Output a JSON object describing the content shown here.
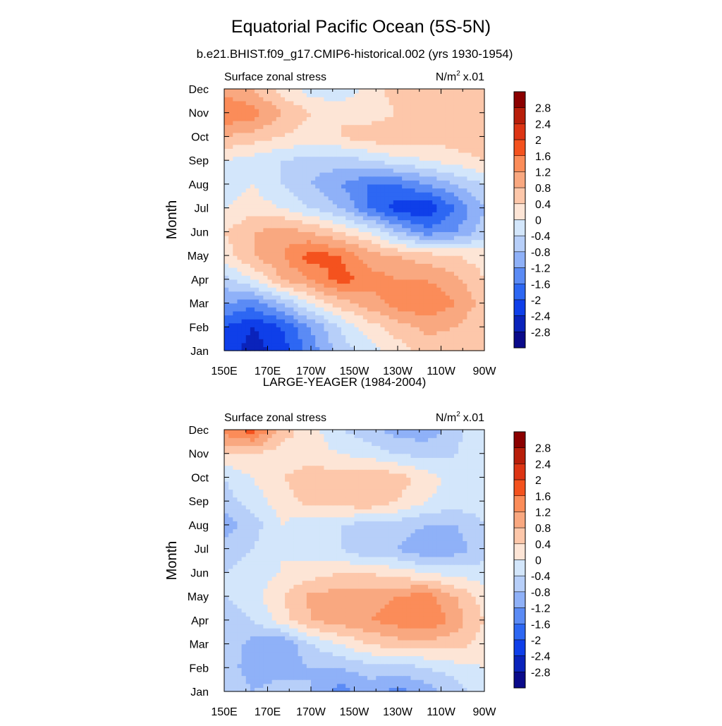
{
  "figure": {
    "title": "Equatorial Pacific Ocean (5S-5N)",
    "subtitle": "b.e21.BHIST.f09_g17.CMIP6-historical.002 (yrs 1930-1954)"
  },
  "chart_data": [
    {
      "type": "heatmap",
      "title": "",
      "left_label": "Surface zonal stress",
      "units": "N/m",
      "units_sup": "2",
      "units_scale": "x.01",
      "xlabel": "",
      "ylabel": "Month",
      "x_ticks": [
        "150E",
        "170E",
        "170W",
        "150W",
        "130W",
        "110W",
        "90W"
      ],
      "y_ticks": [
        "Jan",
        "Feb",
        "Mar",
        "Apr",
        "May",
        "Jun",
        "Jul",
        "Aug",
        "Sep",
        "Oct",
        "Nov",
        "Dec"
      ],
      "colorbar": {
        "labels": [
          "2.8",
          "2.4",
          "2",
          "1.6",
          "1.2",
          "0.8",
          "0.4",
          "0",
          "-0.4",
          "-0.8",
          "-1.2",
          "-1.6",
          "-2",
          "-2.4",
          "-2.8"
        ],
        "colors": [
          "#8b0000",
          "#b81e0a",
          "#dd3514",
          "#f4521e",
          "#fb8c59",
          "#f9a880",
          "#fdc7aa",
          "#fde5d6",
          "#d3e6fb",
          "#b7cff9",
          "#8fb1f8",
          "#5b8bf5",
          "#2d67f3",
          "#0f3fe9",
          "#0a23bb",
          "#0a0a8a"
        ]
      },
      "cells": [
        [
          -2.2,
          -2.6,
          -2.2,
          -1.4,
          -0.6,
          -0.2,
          0.2,
          0.6,
          0.6,
          0.4
        ],
        [
          -2.0,
          -2.4,
          -2.0,
          -1.2,
          -0.4,
          0.2,
          0.6,
          0.9,
          0.8,
          0.4
        ],
        [
          -1.2,
          -1.4,
          -0.8,
          0.0,
          0.6,
          1.0,
          1.4,
          1.6,
          1.2,
          0.6
        ],
        [
          -0.6,
          0.0,
          0.8,
          1.2,
          1.8,
          1.4,
          1.2,
          1.2,
          0.9,
          0.4
        ],
        [
          0.2,
          0.8,
          1.2,
          1.8,
          1.6,
          1.0,
          0.8,
          0.6,
          0.4,
          0.2
        ],
        [
          0.4,
          0.8,
          1.0,
          0.8,
          0.4,
          0.0,
          -0.8,
          -1.4,
          -1.2,
          -0.6
        ],
        [
          0.0,
          0.2,
          0.0,
          -0.4,
          -0.8,
          -1.6,
          -2.2,
          -2.4,
          -1.6,
          -0.8
        ],
        [
          -0.2,
          0.0,
          -0.4,
          -0.8,
          -1.2,
          -1.6,
          -1.6,
          -1.2,
          -0.8,
          -0.4
        ],
        [
          0.0,
          -0.2,
          -0.4,
          -0.6,
          -0.6,
          -0.4,
          -0.2,
          0.0,
          0.2,
          0.4
        ],
        [
          0.8,
          0.6,
          0.4,
          0.2,
          0.4,
          0.6,
          0.8,
          0.6,
          0.6,
          0.8
        ],
        [
          1.6,
          1.4,
          0.8,
          0.4,
          0.4,
          0.2,
          0.4,
          0.6,
          0.8,
          0.8
        ],
        [
          1.0,
          0.8,
          0.2,
          -0.2,
          -0.4,
          0.2,
          0.6,
          0.6,
          0.6,
          0.6
        ]
      ]
    },
    {
      "type": "heatmap",
      "title": "LARGE-YEAGER (1984-2004)",
      "left_label": "Surface zonal stress",
      "units": "N/m",
      "units_sup": "2",
      "units_scale": "x.01",
      "xlabel": "",
      "ylabel": "Month",
      "x_ticks": [
        "150E",
        "170E",
        "170W",
        "150W",
        "130W",
        "110W",
        "90W"
      ],
      "y_ticks": [
        "Jan",
        "Feb",
        "Mar",
        "Apr",
        "May",
        "Jun",
        "Jul",
        "Aug",
        "Sep",
        "Oct",
        "Nov",
        "Dec"
      ],
      "colorbar": {
        "labels": [
          "2.8",
          "2.4",
          "2",
          "1.6",
          "1.2",
          "0.8",
          "0.4",
          "0",
          "-0.4",
          "-0.8",
          "-1.2",
          "-1.6",
          "-2",
          "-2.4",
          "-2.8"
        ],
        "colors": [
          "#8b0000",
          "#b81e0a",
          "#dd3514",
          "#f4521e",
          "#fb8c59",
          "#f9a880",
          "#fdc7aa",
          "#fde5d6",
          "#d3e6fb",
          "#b7cff9",
          "#8fb1f8",
          "#5b8bf5",
          "#2d67f3",
          "#0f3fe9",
          "#0a23bb",
          "#0a0a8a"
        ]
      },
      "cells": [
        [
          -0.4,
          -0.8,
          -0.6,
          -0.8,
          -1.4,
          -1.0,
          -1.4,
          -1.0,
          -0.6,
          -0.2
        ],
        [
          -0.6,
          -1.0,
          -1.0,
          -0.8,
          -0.8,
          -0.6,
          -0.6,
          -0.4,
          -0.2,
          0.0
        ],
        [
          -0.4,
          -1.0,
          -1.2,
          -0.4,
          0.0,
          0.4,
          0.6,
          0.6,
          0.6,
          0.2
        ],
        [
          -0.6,
          -0.4,
          0.2,
          0.8,
          1.0,
          1.2,
          1.4,
          1.6,
          1.0,
          0.4
        ],
        [
          -0.4,
          -0.2,
          0.4,
          0.9,
          1.0,
          1.0,
          1.2,
          1.4,
          0.8,
          0.2
        ],
        [
          -0.4,
          -0.2,
          0.0,
          0.2,
          0.4,
          0.4,
          0.2,
          0.0,
          -0.2,
          -0.2
        ],
        [
          -0.6,
          -0.4,
          0.0,
          -0.2,
          -0.4,
          -0.8,
          -0.8,
          -1.2,
          -1.0,
          -0.6
        ],
        [
          -1.0,
          -0.6,
          0.0,
          -0.4,
          -0.4,
          -0.6,
          -0.6,
          -0.8,
          -0.8,
          -0.4
        ],
        [
          -0.6,
          -0.2,
          0.2,
          0.6,
          0.6,
          0.8,
          0.4,
          0.0,
          -0.2,
          -0.2
        ],
        [
          -0.4,
          0.0,
          0.4,
          0.6,
          0.6,
          0.8,
          0.6,
          0.2,
          -0.2,
          0.0
        ],
        [
          0.4,
          0.4,
          0.2,
          0.2,
          0.0,
          -0.2,
          -0.4,
          -0.6,
          -0.4,
          0.0
        ],
        [
          1.4,
          1.8,
          0.6,
          0.2,
          -0.4,
          -0.6,
          -1.0,
          -1.0,
          -0.6,
          0.0
        ]
      ]
    }
  ]
}
